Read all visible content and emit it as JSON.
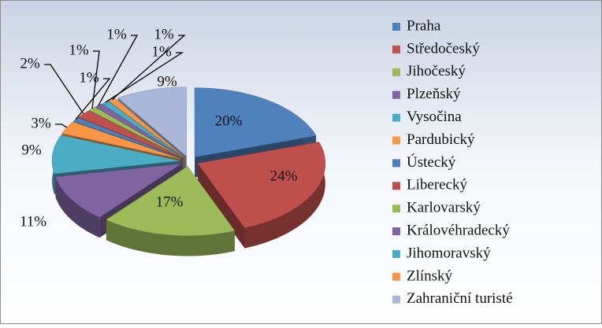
{
  "chart_data": {
    "type": "pie",
    "categories": [
      "Praha",
      "Středočeský",
      "Jihočeský",
      "Plzeňský",
      "Vysočina",
      "Pardubický",
      "Ústecký",
      "Liberecký",
      "Karlovarský",
      "Královéhradecký",
      "Jihomoravský",
      "Zlínský",
      "Zahraniční turisté"
    ],
    "values": [
      20,
      24,
      17,
      11,
      9,
      3,
      1,
      2,
      1,
      1,
      1,
      1,
      9
    ],
    "value_labels": [
      "20%",
      "24%",
      "17%",
      "11%",
      "9%",
      "3%",
      "1%",
      "2%",
      "1%",
      "1%",
      "1%",
      "1%",
      "9%"
    ],
    "colors": [
      "#4F81BD",
      "#C0504D",
      "#9BBB59",
      "#8064A2",
      "#4BACC6",
      "#F79646",
      "#4F81BD",
      "#C0504D",
      "#9BBB59",
      "#8064A2",
      "#4BACC6",
      "#F79646",
      "#A9B8D8"
    ],
    "legend": "right"
  }
}
